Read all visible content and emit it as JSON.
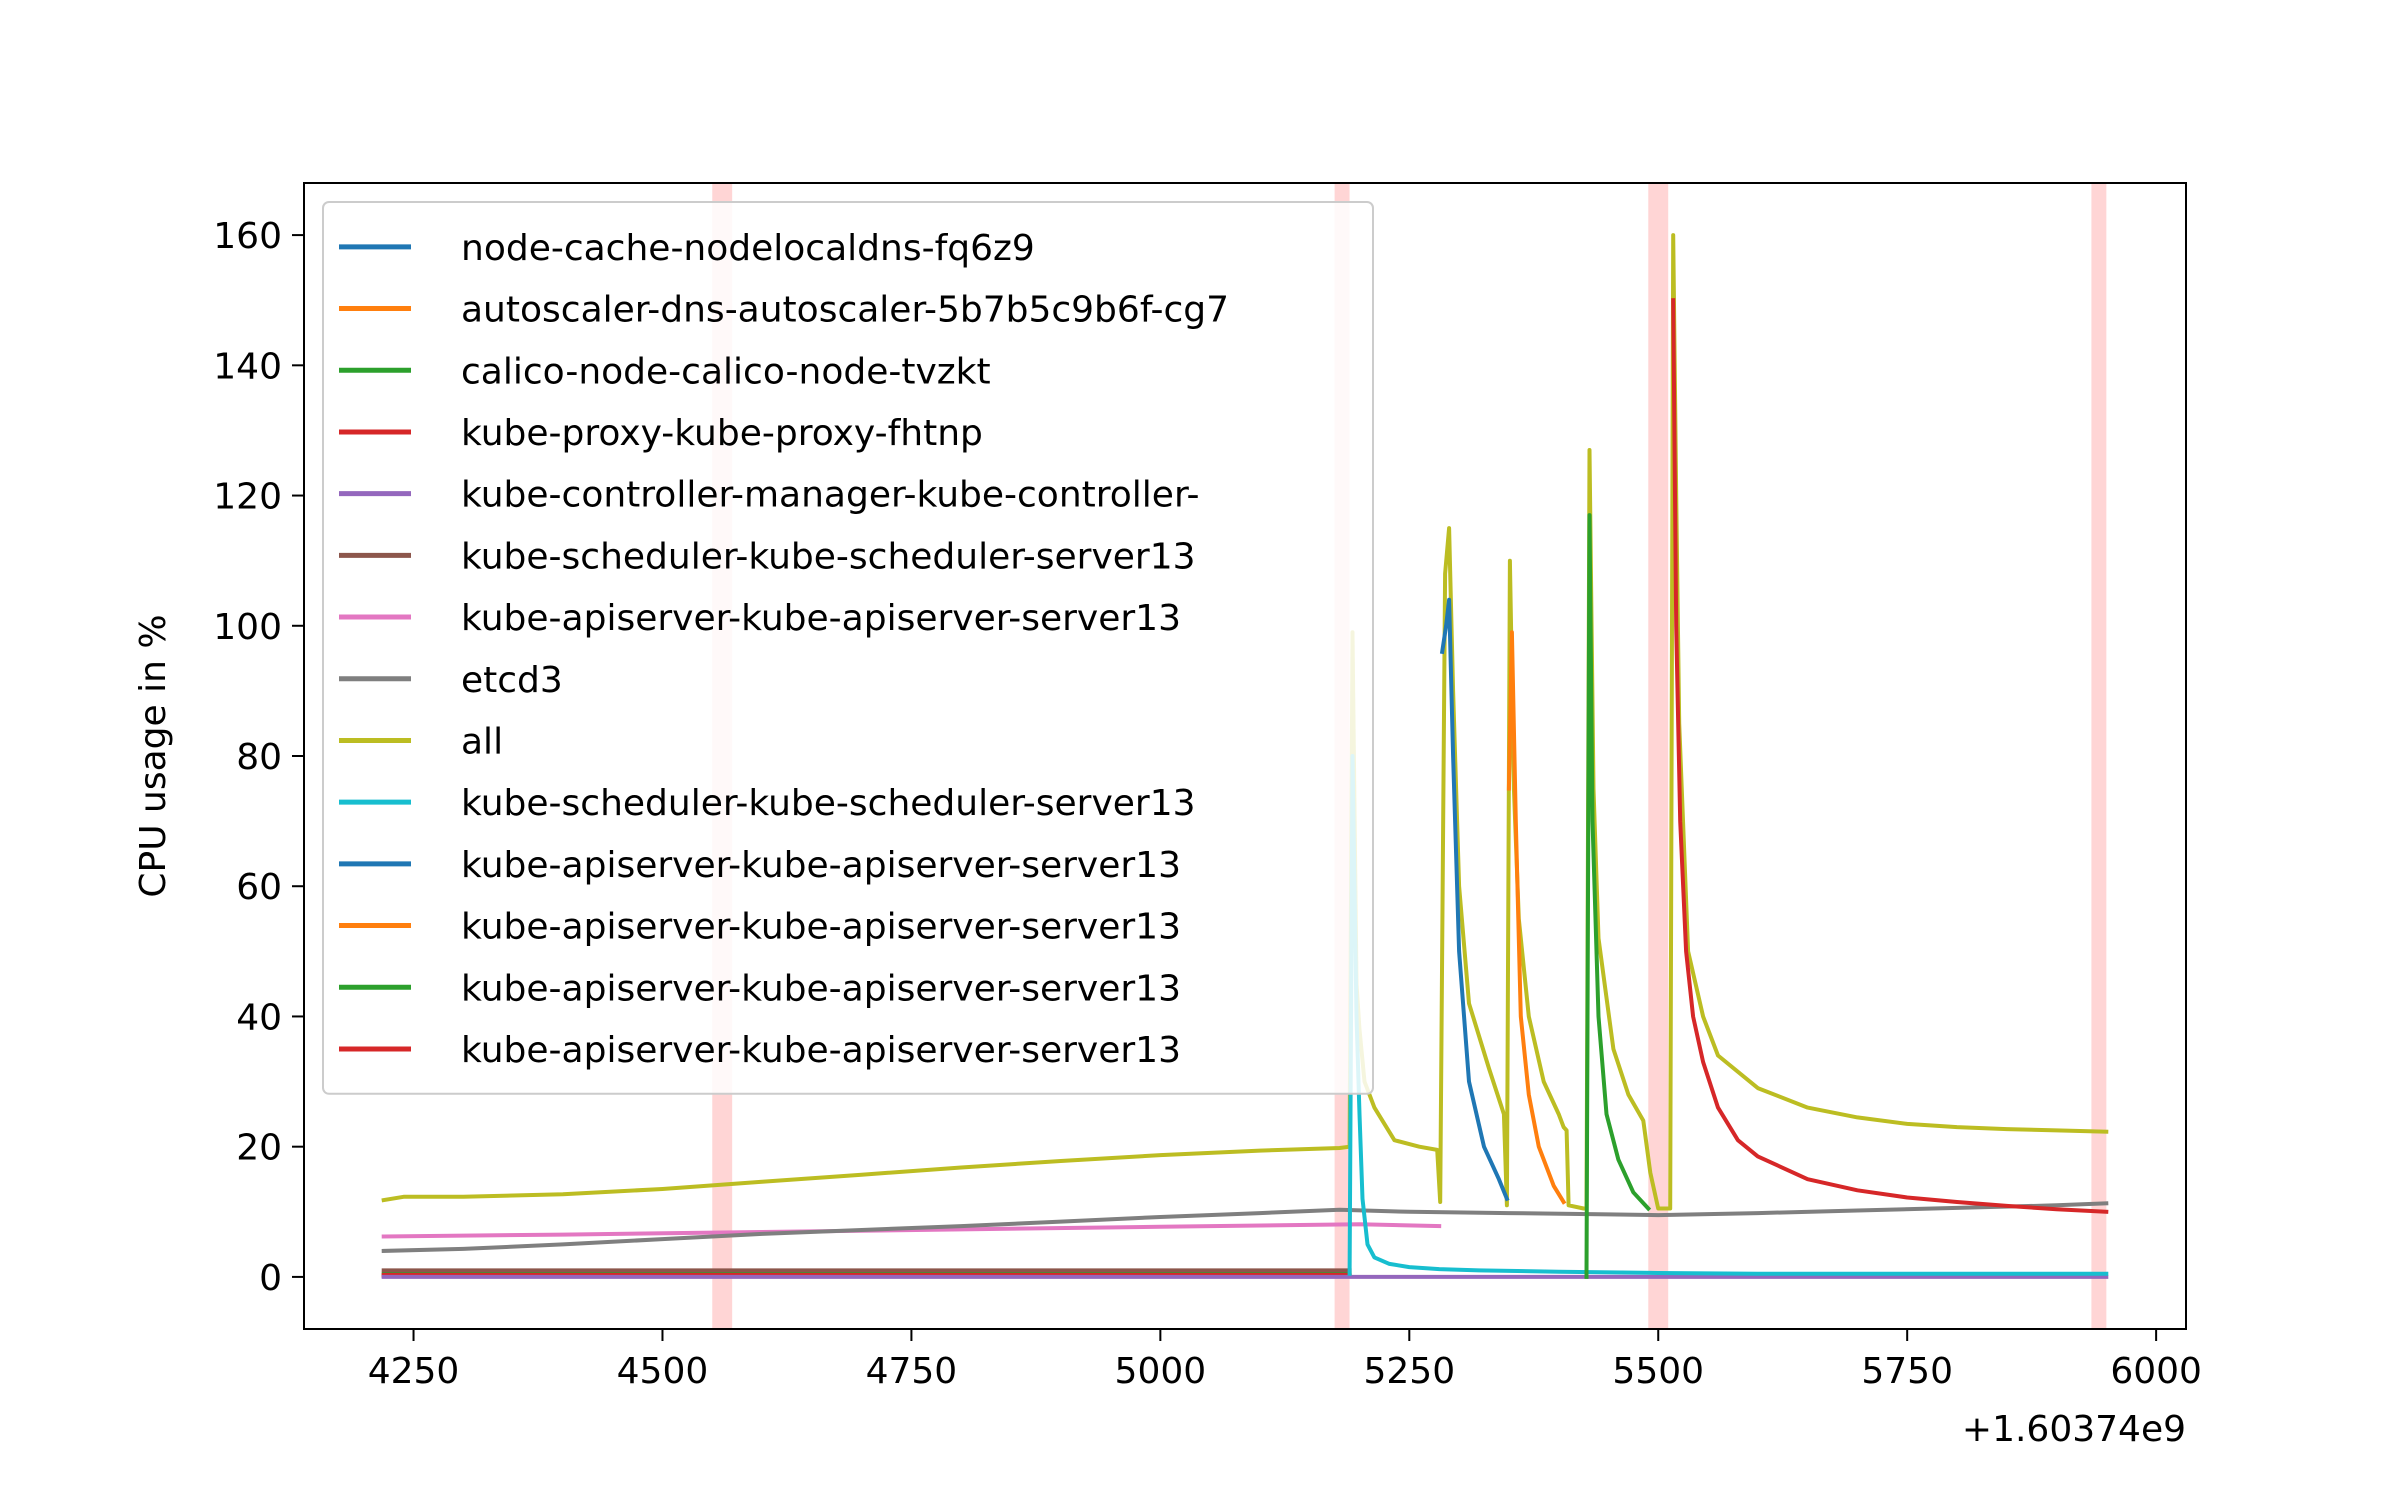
{
  "chart_data": {
    "type": "line",
    "title": "",
    "xlabel": "",
    "ylabel": "CPU usage in %",
    "x_offset_label": "+1.60374e9",
    "xlim": [
      4140,
      6030
    ],
    "ylim": [
      -8,
      168
    ],
    "xticks": [
      4250,
      4500,
      4750,
      5000,
      5250,
      5500,
      5750,
      6000
    ],
    "yticks": [
      0,
      20,
      40,
      60,
      80,
      100,
      120,
      140,
      160
    ],
    "grid": false,
    "legend_position": "upper-left",
    "highlight_spans": {
      "color": "#ffd0d0",
      "ranges": [
        [
          4550,
          4570
        ],
        [
          5175,
          5190
        ],
        [
          5490,
          5510
        ],
        [
          5935,
          5950
        ]
      ]
    },
    "series": [
      {
        "name": "node-cache-nodelocaldns-fq6z9",
        "color": "#1f77b4",
        "x": [
          4220,
          5190
        ],
        "y": [
          0.1,
          0.1
        ]
      },
      {
        "name": "autoscaler-dns-autoscaler-5b7b5c9b6f-cg7",
        "color": "#ff7f0e",
        "x": [
          4220,
          5190
        ],
        "y": [
          0.2,
          0.2
        ]
      },
      {
        "name": "calico-node-calico-node-tvzkt",
        "color": "#2ca02c",
        "x": [
          4220,
          5190
        ],
        "y": [
          0.5,
          0.5
        ]
      },
      {
        "name": "kube-proxy-kube-proxy-fhtnp",
        "color": "#d62728",
        "x": [
          4220,
          5190
        ],
        "y": [
          0.3,
          0.3
        ]
      },
      {
        "name": "kube-controller-manager-kube-controller-",
        "color": "#9467bd",
        "x": [
          4220,
          5950
        ],
        "y": [
          0.0,
          0.0
        ]
      },
      {
        "name": "kube-scheduler-kube-scheduler-server13",
        "color": "#8c564b",
        "x": [
          4220,
          5190
        ],
        "y": [
          1.0,
          1.0
        ]
      },
      {
        "name": "kube-apiserver-kube-apiserver-server13",
        "color": "#e377c2",
        "x": [
          4220,
          4400,
          4600,
          4800,
          5000,
          5200,
          5280
        ],
        "y": [
          6.2,
          6.5,
          6.9,
          7.3,
          7.7,
          8.1,
          7.8
        ]
      },
      {
        "name": "etcd3",
        "color": "#7f7f7f",
        "x": [
          4220,
          4300,
          4400,
          4500,
          4600,
          4700,
          4800,
          4900,
          5000,
          5100,
          5180,
          5250,
          5350,
          5450,
          5500,
          5600,
          5700,
          5800,
          5900,
          5950
        ],
        "y": [
          4,
          4.3,
          5,
          5.8,
          6.6,
          7.2,
          7.8,
          8.5,
          9.2,
          9.8,
          10.3,
          10.0,
          9.8,
          9.6,
          9.5,
          9.8,
          10.2,
          10.6,
          11.0,
          11.3
        ]
      },
      {
        "name": "all",
        "color": "#bcbd22",
        "x": [
          4220,
          4240,
          4300,
          4400,
          4500,
          4600,
          4700,
          4800,
          4900,
          5000,
          5100,
          5180,
          5190,
          5193,
          5197,
          5200,
          5205,
          5215,
          5235,
          5260,
          5278,
          5281,
          5286,
          5290,
          5294,
          5300,
          5310,
          5330,
          5345,
          5348,
          5351,
          5355,
          5360,
          5370,
          5385,
          5400,
          5405,
          5408,
          5410,
          5425,
          5428,
          5431,
          5435,
          5440,
          5455,
          5470,
          5485,
          5492,
          5500,
          5512,
          5515,
          5518,
          5521,
          5530,
          5545,
          5560,
          5600,
          5650,
          5700,
          5750,
          5800,
          5850,
          5900,
          5950
        ],
        "y": [
          11.8,
          12.3,
          12.3,
          12.7,
          13.5,
          14.6,
          15.7,
          16.8,
          17.8,
          18.7,
          19.4,
          19.8,
          20,
          99,
          45,
          38,
          30,
          26,
          21,
          20,
          19.5,
          11.5,
          108,
          115,
          90,
          60,
          42,
          32,
          25,
          11,
          110,
          75,
          55,
          40,
          30,
          25,
          23,
          22.5,
          11,
          10.5,
          10.5,
          127,
          75,
          52,
          35,
          28,
          24,
          16,
          10.5,
          10.5,
          160,
          120,
          85,
          50,
          40,
          34,
          29,
          26,
          24.5,
          23.5,
          23,
          22.7,
          22.5,
          22.3
        ]
      },
      {
        "name": "kube-scheduler-kube-scheduler-server13",
        "color": "#17becf",
        "x": [
          5190,
          5193,
          5197,
          5200,
          5203,
          5208,
          5215,
          5230,
          5250,
          5280,
          5320,
          5400,
          5500,
          5600,
          5800,
          5950
        ],
        "y": [
          0.5,
          80,
          40,
          25,
          12,
          5,
          3,
          2,
          1.5,
          1.2,
          1.0,
          0.8,
          0.6,
          0.5,
          0.5,
          0.5
        ]
      },
      {
        "name": "kube-apiserver-kube-apiserver-server13",
        "color": "#1f77b4",
        "x": [
          5283,
          5287,
          5290,
          5294,
          5300,
          5310,
          5325,
          5340,
          5348
        ],
        "y": [
          96,
          100,
          104,
          80,
          50,
          30,
          20,
          15,
          12
        ]
      },
      {
        "name": "kube-apiserver-kube-apiserver-server13",
        "color": "#ff7f0e",
        "x": [
          5350,
          5353,
          5357,
          5362,
          5370,
          5380,
          5395,
          5405
        ],
        "y": [
          75,
          99,
          70,
          40,
          28,
          20,
          14,
          11.5
        ]
      },
      {
        "name": "kube-apiserver-kube-apiserver-server13",
        "color": "#2ca02c",
        "x": [
          5428,
          5431,
          5434,
          5440,
          5448,
          5460,
          5475,
          5490
        ],
        "y": [
          0,
          117,
          70,
          40,
          25,
          18,
          13,
          10.5
        ]
      },
      {
        "name": "kube-apiserver-kube-apiserver-server13",
        "color": "#d62728",
        "x": [
          5515,
          5518,
          5522,
          5528,
          5535,
          5545,
          5560,
          5580,
          5600,
          5650,
          5700,
          5750,
          5800,
          5850,
          5900,
          5950
        ],
        "y": [
          150,
          100,
          70,
          50,
          40,
          33,
          26,
          21,
          18.5,
          15,
          13.3,
          12.2,
          11.5,
          10.9,
          10.4,
          10
        ]
      }
    ]
  }
}
